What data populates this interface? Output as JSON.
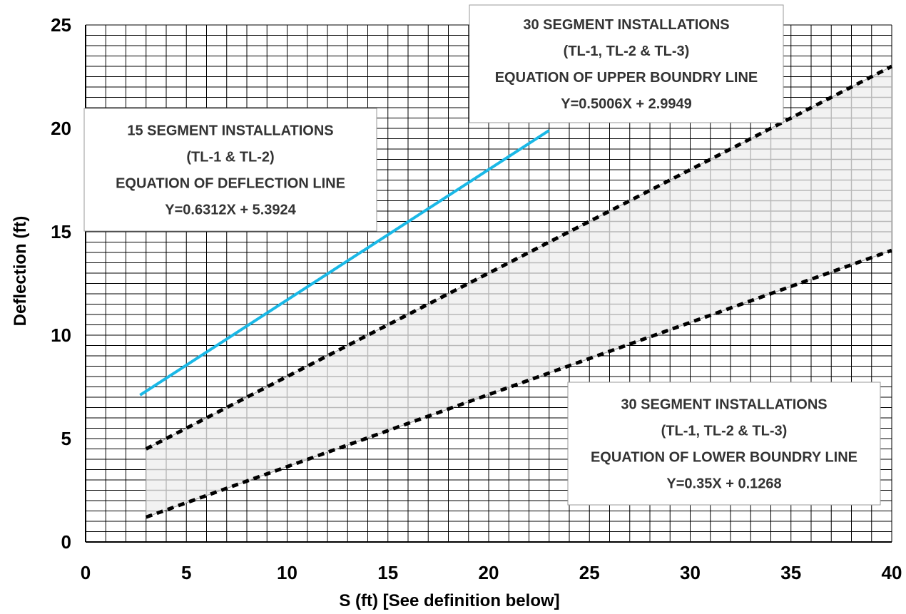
{
  "chart_data": {
    "type": "line",
    "xlabel": "S (ft) [See definition below]",
    "ylabel": "Deflection (ft)",
    "xlim": [
      0,
      40
    ],
    "ylim": [
      0,
      25
    ],
    "x_ticks": [
      "0",
      "5",
      "10",
      "15",
      "20",
      "25",
      "30",
      "35",
      "40"
    ],
    "y_ticks": [
      "0",
      "5",
      "10",
      "15",
      "20",
      "25"
    ],
    "grid": true,
    "series": [
      {
        "x": [
          2.7,
          23
        ],
        "y": [
          7.1,
          19.9
        ],
        "color": "#1ab8e6",
        "style": "solid"
      },
      {
        "x": [
          3,
          40
        ],
        "y": [
          4.5,
          23.0
        ],
        "color": "#000000",
        "style": "dashed"
      },
      {
        "x": [
          3,
          40
        ],
        "y": [
          1.2,
          14.1
        ],
        "color": "#000000",
        "style": "dashed"
      }
    ],
    "shaded_region": {
      "x": [
        3,
        40
      ],
      "upper": [
        4.5,
        23.0
      ],
      "lower": [
        1.2,
        14.1
      ],
      "fill": "#f2f2f2",
      "hatch": "#b8b8b8"
    },
    "annotations": [
      {
        "lines": [
          "15 SEGMENT INSTALLATIONS",
          "(TL-1 & TL-2)",
          "EQUATION OF DEFLECTION LINE",
          "Y=0.6312X + 5.3924"
        ]
      },
      {
        "lines": [
          "30 SEGMENT INSTALLATIONS",
          "(TL-1, TL-2 & TL-3)",
          "EQUATION OF UPPER BOUNDRY LINE",
          "Y=0.5006X + 2.9949"
        ]
      },
      {
        "lines": [
          "30 SEGMENT INSTALLATIONS",
          "(TL-1, TL-2 & TL-3)",
          "EQUATION OF LOWER BOUNDRY LINE",
          "Y=0.35X + 0.1268"
        ]
      }
    ]
  }
}
